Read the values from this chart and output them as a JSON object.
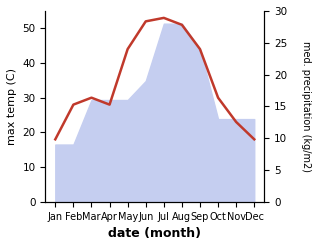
{
  "months": [
    "Jan",
    "Feb",
    "Mar",
    "Apr",
    "May",
    "Jun",
    "Jul",
    "Aug",
    "Sep",
    "Oct",
    "Nov",
    "Dec"
  ],
  "temperature": [
    18,
    28,
    30,
    28,
    44,
    52,
    53,
    51,
    44,
    30,
    23,
    18
  ],
  "precipitation": [
    9,
    9,
    16,
    16,
    16,
    19,
    28,
    28,
    24,
    13,
    13,
    13
  ],
  "temp_color": "#c0392b",
  "precip_fill_color": "#c5cef0",
  "ylabel_left": "max temp (C)",
  "ylabel_right": "med. precipitation (kg/m2)",
  "xlabel": "date (month)",
  "ylim_left": [
    0,
    55
  ],
  "ylim_right": [
    0,
    30
  ],
  "yticks_left": [
    0,
    10,
    20,
    30,
    40,
    50
  ],
  "yticks_right": [
    0,
    5,
    10,
    15,
    20,
    25,
    30
  ],
  "figsize": [
    3.18,
    2.47
  ],
  "dpi": 100
}
